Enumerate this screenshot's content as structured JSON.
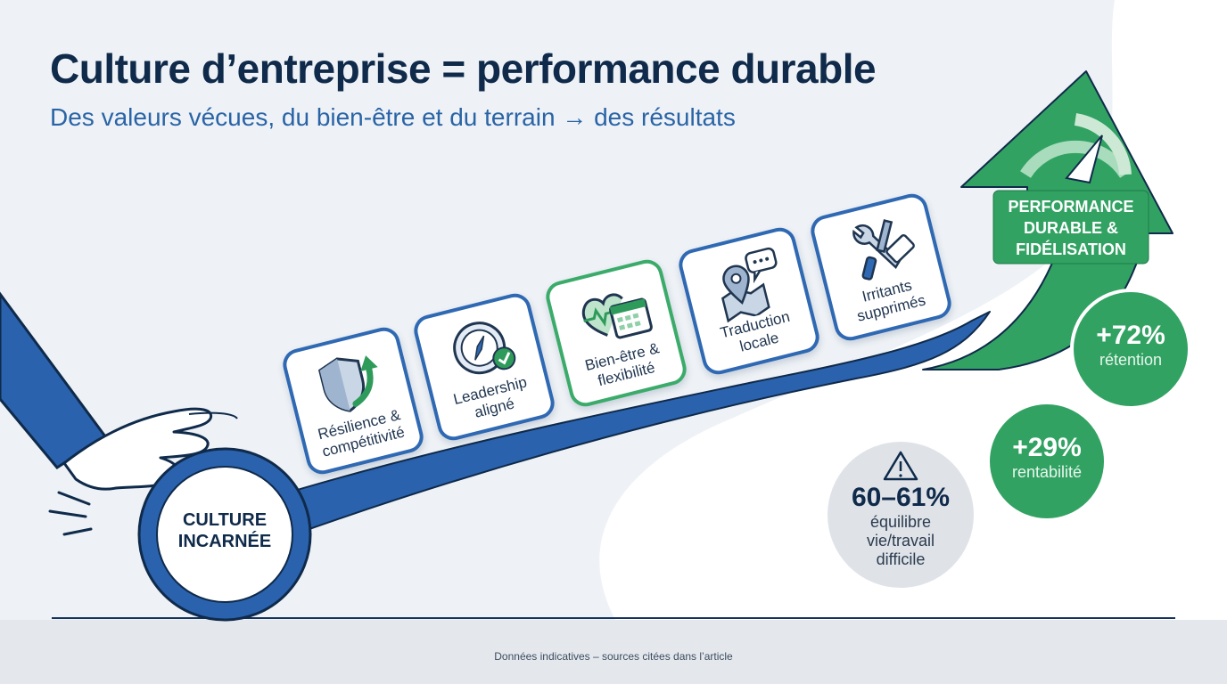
{
  "header": {
    "title": "Culture d’entreprise = performance durable",
    "subtitle": "Des valeurs vécues, du bien-être et du terrain → des résultats"
  },
  "base": {
    "label_lines": [
      "CULTURE",
      "INCARNÉE"
    ]
  },
  "steps": [
    {
      "label_lines": [
        "Résilience &",
        "compétitivité"
      ],
      "icon": "shield-growth-icon",
      "accent": "#2f69b3"
    },
    {
      "label_lines": [
        "Leadership",
        "aligné"
      ],
      "icon": "compass-check-icon",
      "accent": "#2f69b3"
    },
    {
      "label_lines": [
        "Bien-être &",
        "flexibilité"
      ],
      "icon": "heart-calendar-icon",
      "accent": "#3bab6a"
    },
    {
      "label_lines": [
        "Traduction",
        "locale"
      ],
      "icon": "map-pin-chat-icon",
      "accent": "#2f69b3"
    },
    {
      "label_lines": [
        "Irritants",
        "supprimés"
      ],
      "icon": "tools-eraser-icon",
      "accent": "#2f69b3"
    }
  ],
  "goal": {
    "label_lines": [
      "PERFORMANCE",
      "DURABLE &",
      "FIDÉLISATION"
    ],
    "icon": "gauge-icon"
  },
  "stats": {
    "retention": {
      "value": "+72%",
      "label": "rétention"
    },
    "profitability": {
      "value": "+29%",
      "label": "rentabilité"
    },
    "balance": {
      "value": "60–61%",
      "label_lines": [
        "équilibre",
        "vie/travail",
        "difficile"
      ],
      "icon": "warning-icon"
    }
  },
  "footer": {
    "note": "Données indicatives – sources citées dans l’article"
  },
  "colors": {
    "navy": "#0f2a4a",
    "blue": "#2f69b3",
    "green": "#3bab6a",
    "grey": "#dfe3e8"
  }
}
